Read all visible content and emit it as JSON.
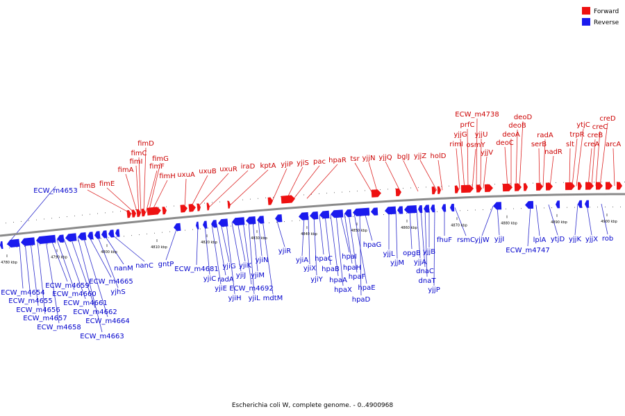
{
  "caption": "Escherichia coli W, complete genome. - 0..4900968",
  "legend": {
    "forward": "Forward",
    "reverse": "Reverse"
  },
  "colors": {
    "forward": "#ee1111",
    "reverse": "#1a1aee",
    "backbone": "#888888",
    "forward_line": "#dd2222",
    "reverse_line": "#2a2acc"
  },
  "ticks": [
    "4780 kbp",
    "4790 kbp",
    "4800 kbp",
    "4810 kbp",
    "4820 kbp",
    "4830 kbp",
    "4840 kbp",
    "4850 kbp",
    "4860 kbp",
    "4870 kbp",
    "4880 kbp",
    "4890 kbp",
    "4900 kbp"
  ],
  "forward_genes": [
    "fimB",
    "fimE",
    "fimA",
    "fimI",
    "fimC",
    "fimD",
    "fimF",
    "fimG",
    "fimH",
    "uxuA",
    "uxuB",
    "uxuR",
    "iraD",
    "kptA",
    "yjiP",
    "yjiS",
    "pac",
    "hpaR",
    "tsr",
    "yjjN",
    "yjjQ",
    "bglJ",
    "yjjZ",
    "holD",
    "rimI",
    "yjjG",
    "prfC",
    "osmY",
    "ECW_m4738",
    "yjjU",
    "yjjV",
    "deoC",
    "deoA",
    "deoB",
    "deoD",
    "serB",
    "radA",
    "nadR",
    "slt",
    "trpR",
    "ytjC",
    "creA",
    "creB",
    "creC",
    "creD",
    "arcA"
  ],
  "reverse_genes": [
    "ECW_m4653",
    "ECW_m4654",
    "ECW_m4655",
    "ECW_m4656",
    "ECW_m4657",
    "ECW_m4658",
    "ECW_m4659",
    "ECW_m4660",
    "ECW_m4661",
    "ECW_m4662",
    "ECW_m4663",
    "ECW_m4664",
    "ECW_m4665",
    "yjhS",
    "nanM",
    "nanC",
    "gntP",
    "ECW_m4681",
    "yjiC",
    "yjiE",
    "radA",
    "yjiG",
    "yjiH",
    "yjiJ",
    "yjiK",
    "ECW_m4692",
    "yjiL",
    "yjiM",
    "yjiN",
    "mdtM",
    "yjiR",
    "yjiA",
    "yjiX",
    "yjiY",
    "hpaC",
    "hpaB",
    "hpaA",
    "hpaX",
    "hpaI",
    "hpaH",
    "hpaF",
    "hpaE",
    "hpaD",
    "hpaG",
    "yjjL",
    "yjjM",
    "opgB",
    "yjjA",
    "dnaC",
    "dnaT",
    "yjjB",
    "yjjP",
    "fhuF",
    "rsmC",
    "yjjW",
    "yjjI",
    "ECW_m4747",
    "lplA",
    "ytjD",
    "yjjK",
    "yjjX",
    "rob"
  ]
}
